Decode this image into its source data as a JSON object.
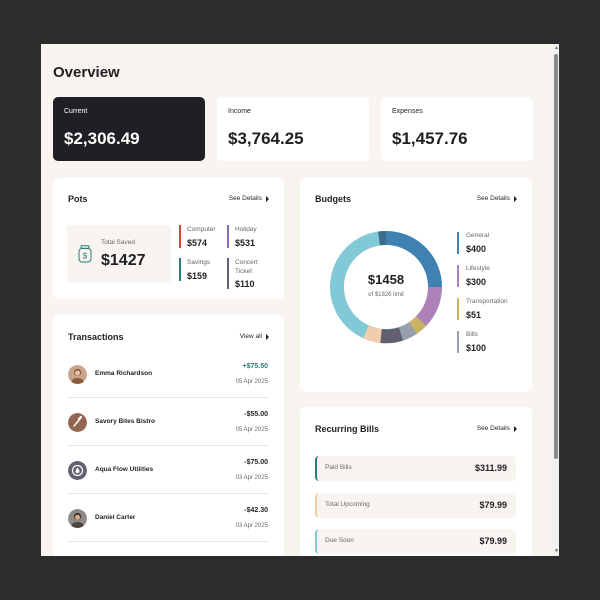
{
  "page": {
    "title": "Overview"
  },
  "summary": {
    "current": {
      "label": "Current",
      "amount": "$2,306.49"
    },
    "income": {
      "label": "Income",
      "amount": "$3,764.25"
    },
    "expenses": {
      "label": "Expenses",
      "amount": "$1,457.76"
    }
  },
  "pots": {
    "title": "Pots",
    "link": "See Details",
    "total_label": "Total Saved",
    "total_amount": "$1427",
    "icon": "jar-dollar-icon",
    "items": [
      {
        "name": "Computer",
        "amount": "$574",
        "color": "#c94736"
      },
      {
        "name": "Holiday",
        "amount": "$531",
        "color": "#826cb0"
      },
      {
        "name": "Savings",
        "amount": "$159",
        "color": "#277c78"
      },
      {
        "name": "Concert Ticket",
        "amount": "$110",
        "color": "#626070"
      }
    ]
  },
  "transactions": {
    "title": "Transactions",
    "link": "View all",
    "items": [
      {
        "name": "Emma Richardson",
        "amount": "+$75.50",
        "date": "05 Apr 2025",
        "positive": true,
        "avatar": "person-avatar"
      },
      {
        "name": "Savory Bites Bistro",
        "amount": "-$55.00",
        "date": "05 Apr 2025",
        "positive": false,
        "avatar": "fork-knife-icon"
      },
      {
        "name": "Aqua Flow Utilities",
        "amount": "-$75.00",
        "date": "03 Apr 2025",
        "positive": false,
        "avatar": "water-drop-icon"
      },
      {
        "name": "Daniel Carter",
        "amount": "-$42.30",
        "date": "03 Apr 2025",
        "positive": false,
        "avatar": "person-avatar"
      }
    ]
  },
  "budgets": {
    "title": "Budgets",
    "link": "See Details",
    "center_amount": "$1458",
    "center_limit": "of $1826 limit",
    "items": [
      {
        "name": "General",
        "amount": "$400",
        "color": "#3f82b2"
      },
      {
        "name": "Lifestyle",
        "amount": "$300",
        "color": "#af81ba"
      },
      {
        "name": "Transportation",
        "amount": "$51",
        "color": "#cab361"
      },
      {
        "name": "Bills",
        "amount": "$100",
        "color": "#82c9d7"
      }
    ]
  },
  "recurring": {
    "title": "Recurring Bills",
    "link": "See Details",
    "items": [
      {
        "name": "Paid Bills",
        "amount": "$311.99",
        "color": "#277c78"
      },
      {
        "name": "Total Upcoming",
        "amount": "$79.99",
        "color": "#f2cdac"
      },
      {
        "name": "Due Soon",
        "amount": "$79.99",
        "color": "#82c9d7"
      }
    ]
  }
}
